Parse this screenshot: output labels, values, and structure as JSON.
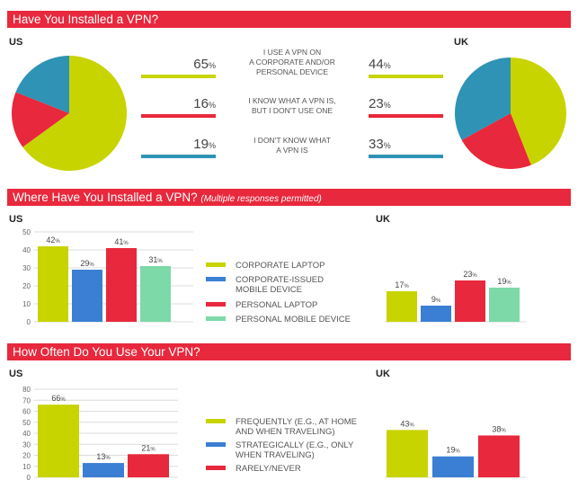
{
  "colors": {
    "lime": "#c8d400",
    "red": "#e8283c",
    "teal": "#2e93b4",
    "blue": "#3a7fd4",
    "mint": "#7dd9a8",
    "banner": "#e8283c"
  },
  "sections": [
    {
      "title": "Have You Installed a VPN?",
      "subtitle": ""
    },
    {
      "title": "Where Have You Installed a VPN?",
      "subtitle": "(Multiple responses permitted)"
    },
    {
      "title": "How Often Do You Use Your VPN?",
      "subtitle": ""
    }
  ],
  "countries": {
    "us": "US",
    "uk": "UK"
  },
  "chart_data": [
    {
      "type": "pie",
      "title": "Have You Installed a VPN?",
      "categories": [
        "I USE A VPN ON A CORPORATE AND/OR PERSONAL DEVICE",
        "I KNOW WHAT A VPN IS, BUT I DON'T USE ONE",
        "I DON'T KNOW WHAT A VPN IS"
      ],
      "category_lines": [
        [
          "I USE A VPN ON",
          "A CORPORATE AND/OR",
          "PERSONAL DEVICE"
        ],
        [
          "I KNOW WHAT A VPN IS,",
          "BUT I DON'T USE ONE"
        ],
        [
          "I DON'T KNOW WHAT",
          "A VPN IS"
        ]
      ],
      "colors": [
        "#c8d400",
        "#e8283c",
        "#2e93b4"
      ],
      "series": [
        {
          "name": "US",
          "values": [
            65,
            16,
            19
          ]
        },
        {
          "name": "UK",
          "values": [
            44,
            23,
            33
          ]
        }
      ]
    },
    {
      "type": "bar",
      "title": "Where Have You Installed a VPN?",
      "categories": [
        "CORPORATE LAPTOP",
        "CORPORATE-ISSUED MOBILE DEVICE",
        "PERSONAL LAPTOP",
        "PERSONAL MOBILE DEVICE"
      ],
      "category_lines": [
        [
          "CORPORATE LAPTOP"
        ],
        [
          "CORPORATE-ISSUED",
          "MOBILE DEVICE"
        ],
        [
          "PERSONAL LAPTOP"
        ],
        [
          "PERSONAL MOBILE DEVICE"
        ]
      ],
      "colors": [
        "#c8d400",
        "#3a7fd4",
        "#e8283c",
        "#7dd9a8"
      ],
      "ylim": [
        0,
        50
      ],
      "yticks": [
        0,
        10,
        20,
        30,
        40,
        50
      ],
      "series": [
        {
          "name": "US",
          "values": [
            42,
            29,
            41,
            31
          ]
        },
        {
          "name": "UK",
          "values": [
            17,
            9,
            23,
            19
          ]
        }
      ]
    },
    {
      "type": "bar",
      "title": "How Often Do You Use Your VPN?",
      "categories": [
        "FREQUENTLY (E.G., AT HOME AND WHEN TRAVELING)",
        "STRATEGICALLY (E.G., ONLY WHEN TRAVELING)",
        "RARELY/NEVER"
      ],
      "category_lines": [
        [
          "FREQUENTLY (E.G., AT HOME",
          "AND WHEN TRAVELING)"
        ],
        [
          "STRATEGICALLY (E.G., ONLY",
          "WHEN TRAVELING)"
        ],
        [
          "RARELY/NEVER"
        ]
      ],
      "colors": [
        "#c8d400",
        "#3a7fd4",
        "#e8283c"
      ],
      "ylim": [
        0,
        80
      ],
      "yticks": [
        0,
        10,
        20,
        30,
        40,
        50,
        60,
        70,
        80
      ],
      "series": [
        {
          "name": "US",
          "values": [
            66,
            13,
            21
          ]
        },
        {
          "name": "UK",
          "values": [
            43,
            19,
            38
          ]
        }
      ]
    }
  ]
}
